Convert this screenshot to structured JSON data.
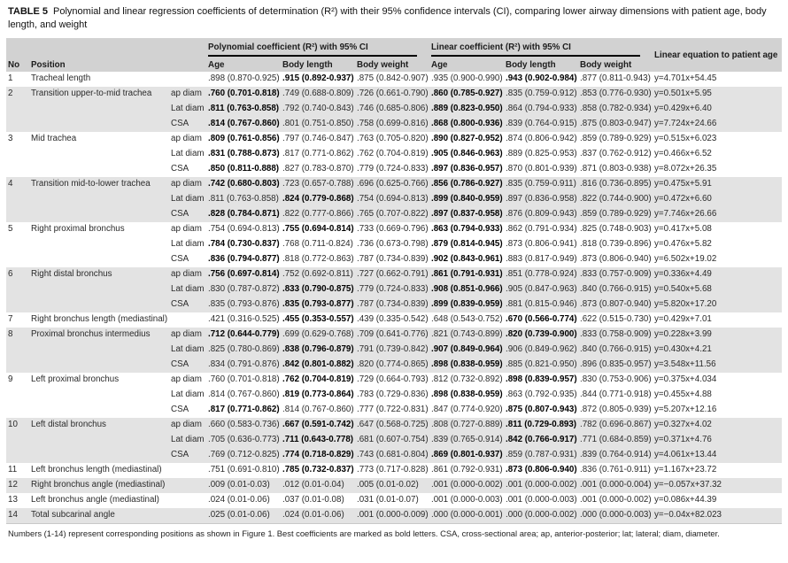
{
  "title": {
    "label": "TABLE 5",
    "text": "Polynomial and linear regression coefficients of determination (R²) with their 95% confidence intervals (CI), comparing lower airway dimensions with patient age, body length, and weight"
  },
  "header": {
    "poly_group": "Polynomial coefficient (R²) with 95% CI",
    "linear_group": "Linear coefficient (R²) with 95% CI",
    "equation": "Linear equation to patient age",
    "no": "No",
    "position": "Position",
    "poly_cols": [
      "Age",
      "Body length",
      "Body weight"
    ],
    "linear_cols": [
      "Age",
      "Body length",
      "Body weight"
    ]
  },
  "rows": [
    {
      "no": "1",
      "position": "Tracheal length",
      "shaded": false,
      "sub": [
        {
          "m": "",
          "poly": [
            ".898 (0.870-0.925)",
            ".915 (0.892-0.937)",
            ".875 (0.842-0.907)"
          ],
          "lin": [
            ".935 (0.900-0.990)",
            ".943 (0.902-0.984)",
            ".877 (0.811-0.943)"
          ],
          "eq": "y=4.701x+54.45",
          "bp": 1,
          "bl": 1
        }
      ]
    },
    {
      "no": "2",
      "position": "Transition upper-to-mid trachea",
      "shaded": true,
      "sub": [
        {
          "m": "ap diam",
          "poly": [
            ".760 (0.701-0.818)",
            ".749 (0.688-0.809)",
            ".726 (0.661-0.790)"
          ],
          "lin": [
            ".860 (0.785-0.927)",
            ".835 (0.759-0.912)",
            ".853 (0.776-0.930)"
          ],
          "eq": "y=0.501x+5.95",
          "bp": 0,
          "bl": 0
        },
        {
          "m": "Lat diam",
          "poly": [
            ".811 (0.763-0.858)",
            ".792 (0.740-0.843)",
            ".746 (0.685-0.806)"
          ],
          "lin": [
            ".889 (0.823-0.950)",
            ".864 (0.794-0.933)",
            ".858 (0.782-0.934)"
          ],
          "eq": "y=0.429x+6.40",
          "bp": 0,
          "bl": 0
        },
        {
          "m": "CSA",
          "poly": [
            ".814 (0.767-0.860)",
            ".801 (0.751-0.850)",
            ".758 (0.699-0.816)"
          ],
          "lin": [
            ".868 (0.800-0.936)",
            ".839 (0.764-0.915)",
            ".875 (0.803-0.947)"
          ],
          "eq": "y=7.724x+24.66",
          "bp": 0,
          "bl": 0
        }
      ]
    },
    {
      "no": "3",
      "position": "Mid trachea",
      "shaded": false,
      "sub": [
        {
          "m": "ap diam",
          "poly": [
            ".809 (0.761-0.856)",
            ".797 (0.746-0.847)",
            ".763 (0.705-0.820)"
          ],
          "lin": [
            ".890 (0.827-0.952)",
            ".874 (0.806-0.942)",
            ".859 (0.789-0.929)"
          ],
          "eq": "y=0.515x+6.023",
          "bp": 0,
          "bl": 0
        },
        {
          "m": "Lat diam",
          "poly": [
            ".831 (0.788-0.873)",
            ".817 (0.771-0.862)",
            ".762 (0.704-0.819)"
          ],
          "lin": [
            ".905 (0.846-0.963)",
            ".889 (0.825-0.953)",
            ".837 (0.762-0.912)"
          ],
          "eq": "y=0.466x+6.52",
          "bp": 0,
          "bl": 0
        },
        {
          "m": "CSA",
          "poly": [
            ".850 (0.811-0.888)",
            ".827 (0.783-0.870)",
            ".779 (0.724-0.833)"
          ],
          "lin": [
            ".897 (0.836-0.957)",
            ".870 (0.801-0.939)",
            ".871 (0.803-0.938)"
          ],
          "eq": "y=8.072x+26.35",
          "bp": 0,
          "bl": 0
        }
      ]
    },
    {
      "no": "4",
      "position": "Transition mid-to-lower trachea",
      "shaded": true,
      "sub": [
        {
          "m": "ap diam",
          "poly": [
            ".742 (0.680-0.803)",
            ".723 (0.657-0.788)",
            ".696 (0.625-0.766)"
          ],
          "lin": [
            ".856 (0.786-0.927)",
            ".835 (0.759-0.911)",
            ".816 (0.736-0.895)"
          ],
          "eq": "y=0.475x+5.91",
          "bp": 0,
          "bl": 0
        },
        {
          "m": "Lat diam",
          "poly": [
            ".811 (0.763-0.858)",
            ".824 (0.779-0.868)",
            ".754 (0.694-0.813)"
          ],
          "lin": [
            ".899 (0.840-0.959)",
            ".897 (0.836-0.958)",
            ".822 (0.744-0.900)"
          ],
          "eq": "y=0.472x+6.60",
          "bp": 1,
          "bl": 0
        },
        {
          "m": "CSA",
          "poly": [
            ".828 (0.784-0.871)",
            ".822 (0.777-0.866)",
            ".765 (0.707-0.822)"
          ],
          "lin": [
            ".897 (0.837-0.958)",
            ".876 (0.809-0.943)",
            ".859 (0.789-0.929)"
          ],
          "eq": "y=7.746x+26.66",
          "bp": 0,
          "bl": 0
        }
      ]
    },
    {
      "no": "5",
      "position": "Right proximal bronchus",
      "shaded": false,
      "sub": [
        {
          "m": "ap diam",
          "poly": [
            ".754 (0.694-0.813)",
            ".755 (0.694-0.814)",
            ".733 (0.669-0.796)"
          ],
          "lin": [
            ".863 (0.794-0.933)",
            ".862 (0.791-0.934)",
            ".825 (0.748-0.903)"
          ],
          "eq": "y=0.417x+5.08",
          "bp": 1,
          "bl": 0
        },
        {
          "m": "Lat diam",
          "poly": [
            ".784 (0.730-0.837)",
            ".768 (0.711-0.824)",
            ".736 (0.673-0.798)"
          ],
          "lin": [
            ".879 (0.814-0.945)",
            ".873 (0.806-0.941)",
            ".818 (0.739-0.896)"
          ],
          "eq": "y=0.476x+5.82",
          "bp": 0,
          "bl": 0
        },
        {
          "m": "CSA",
          "poly": [
            ".836 (0.794-0.877)",
            ".818 (0.772-0.863)",
            ".787 (0.734-0.839)"
          ],
          "lin": [
            ".902 (0.843-0.961)",
            ".883 (0.817-0.949)",
            ".873 (0.806-0.940)"
          ],
          "eq": "y=6.502x+19.02",
          "bp": 0,
          "bl": 0
        }
      ]
    },
    {
      "no": "6",
      "position": "Right distal bronchus",
      "shaded": true,
      "sub": [
        {
          "m": "ap diam",
          "poly": [
            ".756 (0.697-0.814)",
            ".752 (0.692-0.811)",
            ".727 (0.662-0.791)"
          ],
          "lin": [
            ".861 (0.791-0.931)",
            ".851 (0.778-0.924)",
            ".833 (0.757-0.909)"
          ],
          "eq": "y=0.336x+4.49",
          "bp": 0,
          "bl": 0
        },
        {
          "m": "Lat diam",
          "poly": [
            ".830 (0.787-0.872)",
            ".833 (0.790-0.875)",
            ".779 (0.724-0.833)"
          ],
          "lin": [
            ".908 (0.851-0.966)",
            ".905 (0.847-0.963)",
            ".840 (0.766-0.915)"
          ],
          "eq": "y=0.540x+5.68",
          "bp": 1,
          "bl": 0
        },
        {
          "m": "CSA",
          "poly": [
            ".835 (0.793-0.876)",
            ".835 (0.793-0.877)",
            ".787 (0.734-0.839)"
          ],
          "lin": [
            ".899 (0.839-0.959)",
            ".881 (0.815-0.946)",
            ".873 (0.807-0.940)"
          ],
          "eq": "y=5.820x+17.20",
          "bp": 1,
          "bl": 0
        }
      ]
    },
    {
      "no": "7",
      "position": "Right bronchus length (mediastinal)",
      "shaded": false,
      "sub": [
        {
          "m": "",
          "poly": [
            ".421 (0.316-0.525)",
            ".455 (0.353-0.557)",
            ".439 (0.335-0.542)"
          ],
          "lin": [
            ".648 (0.543-0.752)",
            ".670 (0.566-0.774)",
            ".622 (0.515-0.730)"
          ],
          "eq": "y=0.429x+7.01",
          "bp": 1,
          "bl": 1
        }
      ]
    },
    {
      "no": "8",
      "position": "Proximal bronchus intermedius",
      "shaded": true,
      "sub": [
        {
          "m": "ap diam",
          "poly": [
            ".712 (0.644-0.779)",
            ".699 (0.629-0.768)",
            ".709 (0.641-0.776)"
          ],
          "lin": [
            ".821 (0.743-0.899)",
            ".820 (0.739-0.900)",
            ".833 (0.758-0.909)"
          ],
          "eq": "y=0.228x+3.99",
          "bp": 0,
          "bl": 1
        },
        {
          "m": "Lat diam",
          "poly": [
            ".825 (0.780-0.869)",
            ".838 (0.796-0.879)",
            ".791 (0.739-0.842)"
          ],
          "lin": [
            ".907 (0.849-0.964)",
            ".906 (0.849-0.962)",
            ".840 (0.766-0.915)"
          ],
          "eq": "y=0.430x+4.21",
          "bp": 1,
          "bl": 0
        },
        {
          "m": "CSA",
          "poly": [
            ".834 (0.791-0.876)",
            ".842 (0.801-0.882)",
            ".820 (0.774-0.865)"
          ],
          "lin": [
            ".898 (0.838-0.959)",
            ".885 (0.821-0.950)",
            ".896 (0.835-0.957)"
          ],
          "eq": "y=3.548x+11.56",
          "bp": 1,
          "bl": 0
        }
      ]
    },
    {
      "no": "9",
      "position": "Left proximal bronchus",
      "shaded": false,
      "sub": [
        {
          "m": "ap diam",
          "poly": [
            ".760 (0.701-0.818)",
            ".762 (0.704-0.819)",
            ".729 (0.664-0.793)"
          ],
          "lin": [
            ".812 (0.732-0.892)",
            ".898 (0.839-0.957)",
            ".830 (0.753-0.906)"
          ],
          "eq": "y=0.375x+4.034",
          "bp": 1,
          "bl": 1
        },
        {
          "m": "Lat diam",
          "poly": [
            ".814 (0.767-0.860)",
            ".819 (0.773-0.864)",
            ".783 (0.729-0.836)"
          ],
          "lin": [
            ".898 (0.838-0.959)",
            ".863 (0.792-0.935)",
            ".844 (0.771-0.918)"
          ],
          "eq": "y=0.455x+4.88",
          "bp": 1,
          "bl": 0
        },
        {
          "m": "CSA",
          "poly": [
            ".817 (0.771-0.862)",
            ".814 (0.767-0.860)",
            ".777 (0.722-0.831)"
          ],
          "lin": [
            ".847 (0.774-0.920)",
            ".875 (0.807-0.943)",
            ".872 (0.805-0.939)"
          ],
          "eq": "y=5.207x+12.16",
          "bp": 0,
          "bl": 1
        }
      ]
    },
    {
      "no": "10",
      "position": "Left distal bronchus",
      "shaded": true,
      "sub": [
        {
          "m": "ap diam",
          "poly": [
            ".660 (0.583-0.736)",
            ".667 (0.591-0.742)",
            ".647 (0.568-0.725)"
          ],
          "lin": [
            ".808 (0.727-0.889)",
            ".811 (0.729-0.893)",
            ".782 (0.696-0.867)"
          ],
          "eq": "y=0.327x+4.02",
          "bp": 1,
          "bl": 1
        },
        {
          "m": "Lat diam",
          "poly": [
            ".705 (0.636-0.773)",
            ".711 (0.643-0.778)",
            ".681 (0.607-0.754)"
          ],
          "lin": [
            ".839 (0.765-0.914)",
            ".842 (0.766-0.917)",
            ".771 (0.684-0.859)"
          ],
          "eq": "y=0.371x+4.76",
          "bp": 1,
          "bl": 1
        },
        {
          "m": "CSA",
          "poly": [
            ".769 (0.712-0.825)",
            ".774 (0.718-0.829)",
            ".743 (0.681-0.804)"
          ],
          "lin": [
            ".869 (0.801-0.937)",
            ".859 (0.787-0.931)",
            ".839 (0.764-0.914)"
          ],
          "eq": "y=4.061x+13.44",
          "bp": 1,
          "bl": 0
        }
      ]
    },
    {
      "no": "11",
      "position": "Left bronchus length (mediastinal)",
      "shaded": false,
      "sub": [
        {
          "m": "",
          "poly": [
            ".751 (0.691-0.810)",
            ".785 (0.732-0.837)",
            ".773 (0.717-0.828)"
          ],
          "lin": [
            ".861 (0.792-0.931)",
            ".873 (0.806-0.940)",
            ".836 (0.761-0.911)"
          ],
          "eq": "y=1.167x+23.72",
          "bp": 1,
          "bl": 1
        }
      ]
    },
    {
      "no": "12",
      "position": "Right bronchus angle (mediastinal)",
      "shaded": true,
      "sub": [
        {
          "m": "",
          "poly": [
            ".009 (0.01-0.03)",
            ".012 (0.01-0.04)",
            ".005 (0.01-0.02)"
          ],
          "lin": [
            ".001 (0.000-0.002)",
            ".001 (0.000-0.002)",
            ".001 (0.000-0.004)"
          ],
          "eq": "y=−0.057x+37.32",
          "bp": -1,
          "bl": -1
        }
      ]
    },
    {
      "no": "13",
      "position": "Left bronchus angle (mediastinal)",
      "shaded": false,
      "sub": [
        {
          "m": "",
          "poly": [
            ".024 (0.01-0.06)",
            ".037 (0.01-0.08)",
            ".031 (0.01-0.07)"
          ],
          "lin": [
            ".001 (0.000-0.003)",
            ".001 (0.000-0.003)",
            ".001 (0.000-0.002)"
          ],
          "eq": "y=0.086x+44.39",
          "bp": -1,
          "bl": -1
        }
      ]
    },
    {
      "no": "14",
      "position": "Total subcarinal angle",
      "shaded": true,
      "sub": [
        {
          "m": "",
          "poly": [
            ".025 (0.01-0.06)",
            ".024 (0.01-0.06)",
            ".001 (0.000-0.009)"
          ],
          "lin": [
            ".000 (0.000-0.001)",
            ".000 (0.000-0.002)",
            ".000 (0.000-0.003)"
          ],
          "eq": "y=−0.04x+82.023",
          "bp": -1,
          "bl": -1
        }
      ]
    }
  ],
  "footnote": "Numbers (1-14) represent corresponding positions as shown in Figure 1. Best coefficients are marked as bold letters. CSA, cross-sectional area; ap, anterior-posterior; lat; lateral; diam, diameter.",
  "colors": {
    "header_band": "#d2d2d2",
    "shaded_row": "#e3e3e3",
    "rule": "#000000"
  }
}
